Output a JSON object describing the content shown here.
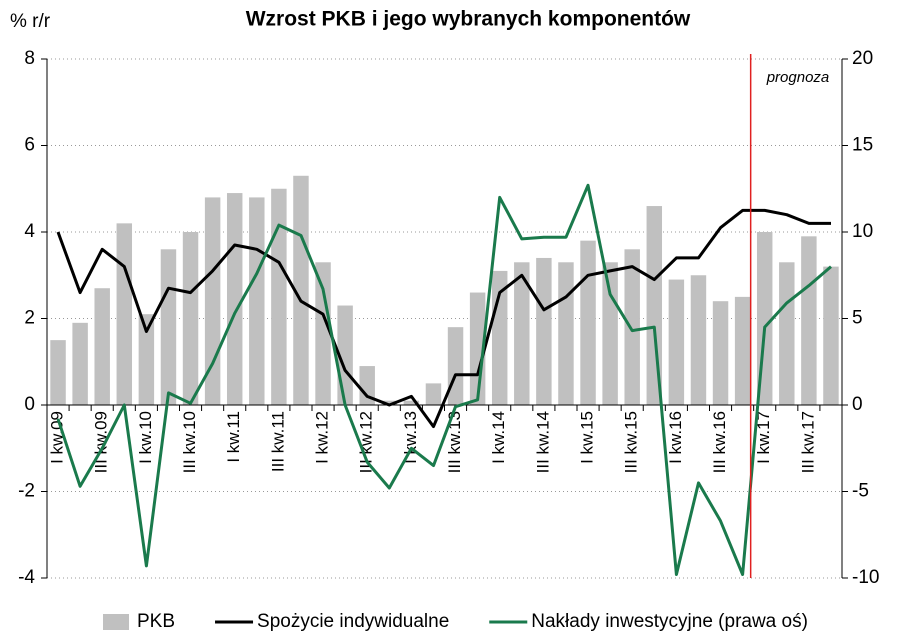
{
  "chart_data": {
    "type": "bar_line",
    "title": "Wzrost PKB i jego wybranych komponentów",
    "y_label": "% r/r",
    "annotation": "prognoza",
    "categories": [
      "I kw.09",
      null,
      "III kw.09",
      null,
      "I kw.10",
      null,
      "III kw.10",
      null,
      "I kw.11",
      null,
      "III kw.11",
      null,
      "I kw.12",
      null,
      "III kw.12",
      null,
      "I kw.13",
      null,
      "III kw.13",
      null,
      "I kw.14",
      null,
      "III kw.14",
      null,
      "I kw.15",
      null,
      "III kw.15",
      null,
      "I kw.16",
      null,
      "III kw.16",
      null,
      "I kw.17",
      null,
      "III kw.17",
      null
    ],
    "series": [
      {
        "name": "PKB",
        "kind": "bar",
        "color": "#c0c0c0",
        "values": [
          1.5,
          1.9,
          2.7,
          4.2,
          2.1,
          3.6,
          4.0,
          4.8,
          4.9,
          4.8,
          5.0,
          5.3,
          3.3,
          2.3,
          0.9,
          0.1,
          0.1,
          0.5,
          1.8,
          2.6,
          3.1,
          3.3,
          3.4,
          3.3,
          3.8,
          3.3,
          3.6,
          4.6,
          2.9,
          3.0,
          2.4,
          2.5,
          4.0,
          3.3,
          3.9,
          3.2
        ]
      },
      {
        "name": "Spożycie indywidualne",
        "kind": "line",
        "color": "#000000",
        "values": [
          4.0,
          2.6,
          3.6,
          3.2,
          1.7,
          2.7,
          2.6,
          3.1,
          3.7,
          3.6,
          3.3,
          2.4,
          2.1,
          0.8,
          0.2,
          0.0,
          0.2,
          -0.5,
          0.7,
          0.7,
          2.6,
          3.0,
          2.2,
          2.5,
          3.0,
          3.1,
          3.2,
          2.9,
          3.4,
          3.4,
          4.1,
          4.5,
          4.5,
          4.4,
          4.2,
          4.2
        ]
      },
      {
        "name": "Nakłady inwestycyjne (prawa oś)",
        "kind": "line",
        "axis": "y2",
        "color": "#1a7a4c",
        "values": [
          -0.8,
          -4.7,
          -2.5,
          0,
          -9.3,
          0.7,
          0.1,
          2.4,
          5.3,
          7.6,
          10.4,
          9.8,
          6.7,
          0,
          -3.3,
          -4.8,
          -2.5,
          -3.5,
          -0.1,
          0.3,
          12.0,
          9.6,
          9.7,
          9.7,
          12.7,
          6.4,
          4.3,
          4.5,
          -9.8,
          -4.5,
          -6.7,
          -9.8,
          4.5,
          5.9,
          6.9,
          8.0
        ]
      }
    ],
    "ylim": [
      -4,
      8
    ],
    "yticks": [
      -4,
      -2,
      0,
      2,
      4,
      6,
      8
    ],
    "y2lim": [
      -10,
      20
    ],
    "y2ticks": [
      -10,
      -5,
      0,
      5,
      10,
      15,
      20
    ],
    "grid": true
  }
}
